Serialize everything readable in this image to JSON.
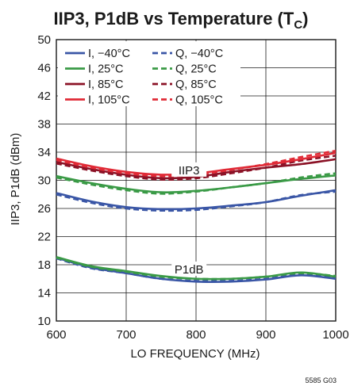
{
  "chart_data": {
    "type": "line",
    "title": "IIP3, P1dB vs Temperature (T",
    "title_sub": "C",
    "title_close": ")",
    "xlabel": "LO FREQUENCY (MHz)",
    "ylabel": "IIP3, P1dB (dBm)",
    "xlim": [
      600,
      1000
    ],
    "ylim": [
      10,
      50
    ],
    "xticks": [
      "600",
      "700",
      "800",
      "900",
      "1000"
    ],
    "yticks": [
      "10",
      "14",
      "18",
      "22",
      "26",
      "30",
      "34",
      "38",
      "42",
      "46",
      "50"
    ],
    "grid": true,
    "legend_position": "top-left",
    "annotations": [
      {
        "text": "IIP3",
        "x": 790,
        "y": 31.2
      },
      {
        "text": "P1dB",
        "x": 790,
        "y": 17.1
      }
    ],
    "figure_code": "5585 G03",
    "series": [
      {
        "name": "I, −40°C",
        "color": "#3a56a6",
        "dash": false,
        "group": "IIP3",
        "x": [
          600,
          650,
          700,
          750,
          800,
          850,
          900,
          950,
          1000
        ],
        "y": [
          28.2,
          27.0,
          26.2,
          25.9,
          26.0,
          26.4,
          26.9,
          27.8,
          28.6
        ]
      },
      {
        "name": "Q, −40°C",
        "color": "#3a56a6",
        "dash": true,
        "group": "IIP3",
        "x": [
          600,
          650,
          700,
          750,
          800,
          850,
          900,
          950,
          1000
        ],
        "y": [
          28.0,
          26.8,
          26.0,
          25.7,
          25.8,
          26.3,
          26.9,
          27.9,
          28.4
        ]
      },
      {
        "name": "I, 25°C",
        "color": "#3a9a46",
        "dash": false,
        "group": "IIP3",
        "x": [
          600,
          650,
          700,
          750,
          800,
          850,
          900,
          950,
          1000
        ],
        "y": [
          30.6,
          29.6,
          28.8,
          28.3,
          28.5,
          29.0,
          29.6,
          30.2,
          30.7
        ]
      },
      {
        "name": "Q, 25°C",
        "color": "#3a9a46",
        "dash": true,
        "group": "IIP3",
        "x": [
          600,
          650,
          700,
          750,
          800,
          850,
          900,
          950,
          1000
        ],
        "y": [
          30.4,
          29.4,
          28.6,
          28.1,
          28.4,
          29.0,
          29.6,
          30.4,
          31.0
        ]
      },
      {
        "name": "I, 85°C",
        "color": "#8b1226",
        "dash": false,
        "group": "IIP3",
        "x": [
          600,
          650,
          700,
          750,
          800,
          850,
          900,
          950,
          1000
        ],
        "y": [
          32.6,
          31.6,
          30.8,
          30.3,
          30.5,
          31.2,
          31.8,
          32.3,
          33.0
        ]
      },
      {
        "name": "Q, 85°C",
        "color": "#8b1226",
        "dash": true,
        "group": "IIP3",
        "x": [
          600,
          650,
          700,
          750,
          800,
          850,
          900,
          950,
          1000
        ],
        "y": [
          32.4,
          31.4,
          30.6,
          30.1,
          30.3,
          31.0,
          31.8,
          32.8,
          33.5
        ]
      },
      {
        "name": "I, 105°C",
        "color": "#e02a36",
        "dash": false,
        "group": "IIP3",
        "x": [
          600,
          650,
          700,
          750,
          800,
          850,
          900,
          950,
          1000
        ],
        "y": [
          33.1,
          32.0,
          31.2,
          30.8,
          31.0,
          31.6,
          32.2,
          33.0,
          33.9
        ]
      },
      {
        "name": "Q, 105°C",
        "color": "#e02a36",
        "dash": true,
        "group": "IIP3",
        "x": [
          600,
          650,
          700,
          750,
          800,
          850,
          900,
          950,
          1000
        ],
        "y": [
          32.9,
          31.8,
          31.0,
          30.6,
          30.8,
          31.5,
          32.3,
          33.3,
          34.2
        ]
      },
      {
        "name": "I, −40°C",
        "color": "#3a56a6",
        "dash": false,
        "group": "P1dB",
        "x": [
          600,
          650,
          700,
          750,
          800,
          850,
          900,
          950,
          1000
        ],
        "y": [
          19.0,
          17.6,
          16.8,
          16.0,
          15.6,
          15.6,
          15.9,
          16.5,
          16.0
        ]
      },
      {
        "name": "Q, −40°C",
        "color": "#3a56a6",
        "dash": true,
        "group": "P1dB",
        "x": [
          600,
          650,
          700,
          750,
          800,
          850,
          900,
          950,
          1000
        ],
        "y": [
          18.9,
          17.5,
          16.8,
          16.0,
          15.7,
          15.7,
          16.0,
          16.6,
          16.1
        ]
      },
      {
        "name": "I, 25°C",
        "color": "#3a9a46",
        "dash": false,
        "group": "P1dB",
        "x": [
          600,
          650,
          700,
          750,
          800,
          850,
          900,
          950,
          1000
        ],
        "y": [
          19.1,
          17.8,
          17.1,
          16.4,
          16.0,
          16.0,
          16.3,
          16.9,
          16.3
        ]
      },
      {
        "name": "Q, 25°C",
        "color": "#3a9a46",
        "dash": true,
        "group": "P1dB",
        "x": [
          600,
          650,
          700,
          750,
          800,
          850,
          900,
          950,
          1000
        ],
        "y": [
          19.0,
          17.7,
          17.0,
          16.3,
          16.0,
          16.0,
          16.3,
          16.8,
          16.4
        ]
      }
    ]
  }
}
